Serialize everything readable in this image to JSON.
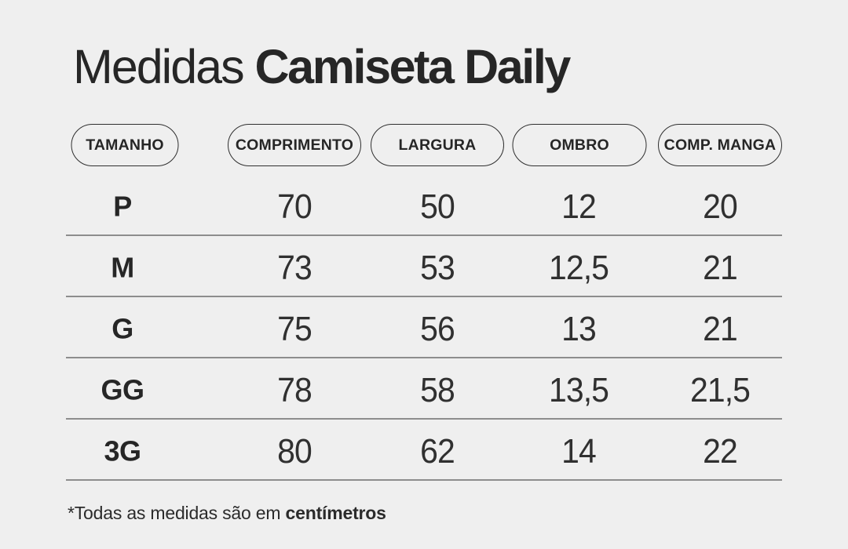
{
  "title": {
    "regular": "Medidas",
    "bold": "Camiseta Daily"
  },
  "table": {
    "columns": [
      "TAMANHO",
      "COMPRIMENTO",
      "LARGURA",
      "OMBRO",
      "COMP. MANGA"
    ],
    "rows": [
      {
        "size": "P",
        "values": [
          "70",
          "50",
          "12",
          "20"
        ]
      },
      {
        "size": "M",
        "values": [
          "73",
          "53",
          "12,5",
          "21"
        ]
      },
      {
        "size": "G",
        "values": [
          "75",
          "56",
          "13",
          "21"
        ]
      },
      {
        "size": "GG",
        "values": [
          "78",
          "58",
          "13,5",
          "21,5"
        ]
      },
      {
        "size": "3G",
        "values": [
          "80",
          "62",
          "14",
          "22"
        ]
      }
    ]
  },
  "footnote": {
    "regular": "*Todas as medidas são em ",
    "bold": "centímetros"
  },
  "colors": {
    "background": "#efefef",
    "text": "#2b2b2b",
    "separator": "#8d8d8d",
    "pill_border": "#2f2f2f"
  },
  "chart_data": {
    "type": "table",
    "title": "Medidas Camiseta Daily",
    "columns": [
      "TAMANHO",
      "COMPRIMENTO",
      "LARGURA",
      "OMBRO",
      "COMP. MANGA"
    ],
    "rows": [
      [
        "P",
        70,
        50,
        12,
        20
      ],
      [
        "M",
        73,
        53,
        12.5,
        21
      ],
      [
        "G",
        75,
        56,
        13,
        21
      ],
      [
        "GG",
        78,
        58,
        13.5,
        21.5
      ],
      [
        "3G",
        80,
        62,
        14,
        22
      ]
    ],
    "units": "centímetros",
    "note": "*Todas as medidas são em centímetros"
  }
}
